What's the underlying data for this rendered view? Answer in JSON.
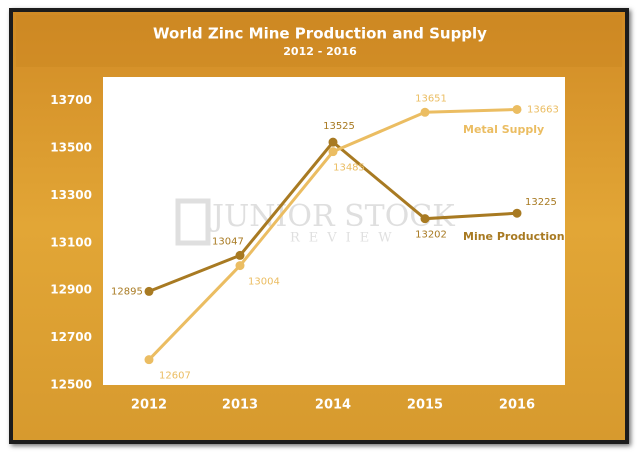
{
  "chart_data": {
    "type": "line",
    "title": "World Zinc Mine Production and Supply",
    "subtitle": "2012 - 2016",
    "categories": [
      "2012",
      "2013",
      "2014",
      "2015",
      "2016"
    ],
    "series": [
      {
        "name": "Mine Production",
        "color": "#a87a22",
        "values": [
          12895,
          13047,
          13525,
          13202,
          13225
        ]
      },
      {
        "name": "Metal Supply",
        "color": "#ebbd62",
        "values": [
          12607,
          13004,
          13485,
          13651,
          13663
        ]
      }
    ],
    "ylim": [
      12500,
      13800
    ],
    "yticks": [
      12500,
      12700,
      12900,
      13100,
      13300,
      13500,
      13700
    ],
    "grid": false
  },
  "watermark": {
    "line1": "JUNIOR STOCK",
    "line2": "REVIEW"
  }
}
